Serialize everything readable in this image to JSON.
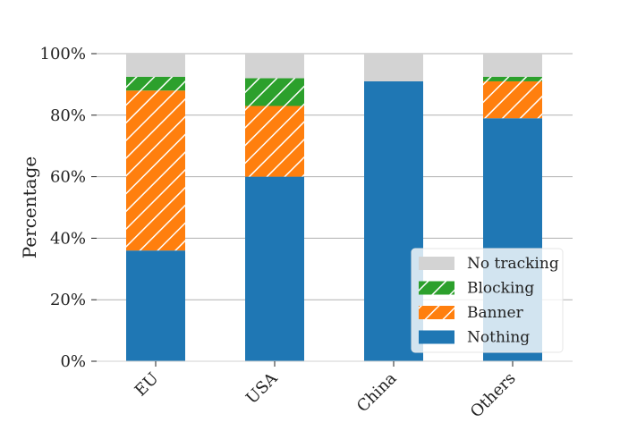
{
  "chart_data": {
    "type": "bar",
    "stacked": true,
    "title": "",
    "xlabel": "",
    "ylabel": "Percentage",
    "ylim": [
      0,
      100
    ],
    "yticks": [
      0,
      20,
      40,
      60,
      80,
      100
    ],
    "ytick_suffix": "%",
    "grid": "horizontal",
    "legend_position": "bottom-right",
    "categories": [
      "EU",
      "USA",
      "China",
      "Others"
    ],
    "series": [
      {
        "name": "Nothing",
        "values": [
          36,
          60,
          91,
          79
        ],
        "color": "#1f77b4",
        "hatch": "none"
      },
      {
        "name": "Banner",
        "values": [
          52,
          23,
          0,
          12
        ],
        "color": "#ff7f0e",
        "hatch": "diagonal"
      },
      {
        "name": "Blocking",
        "values": [
          4.5,
          9,
          0,
          1.5
        ],
        "color": "#2ca02c",
        "hatch": "diagonal"
      },
      {
        "name": "No tracking",
        "values": [
          7.5,
          8,
          9,
          7.5
        ],
        "color": "#d3d3d3",
        "hatch": "none"
      }
    ]
  }
}
